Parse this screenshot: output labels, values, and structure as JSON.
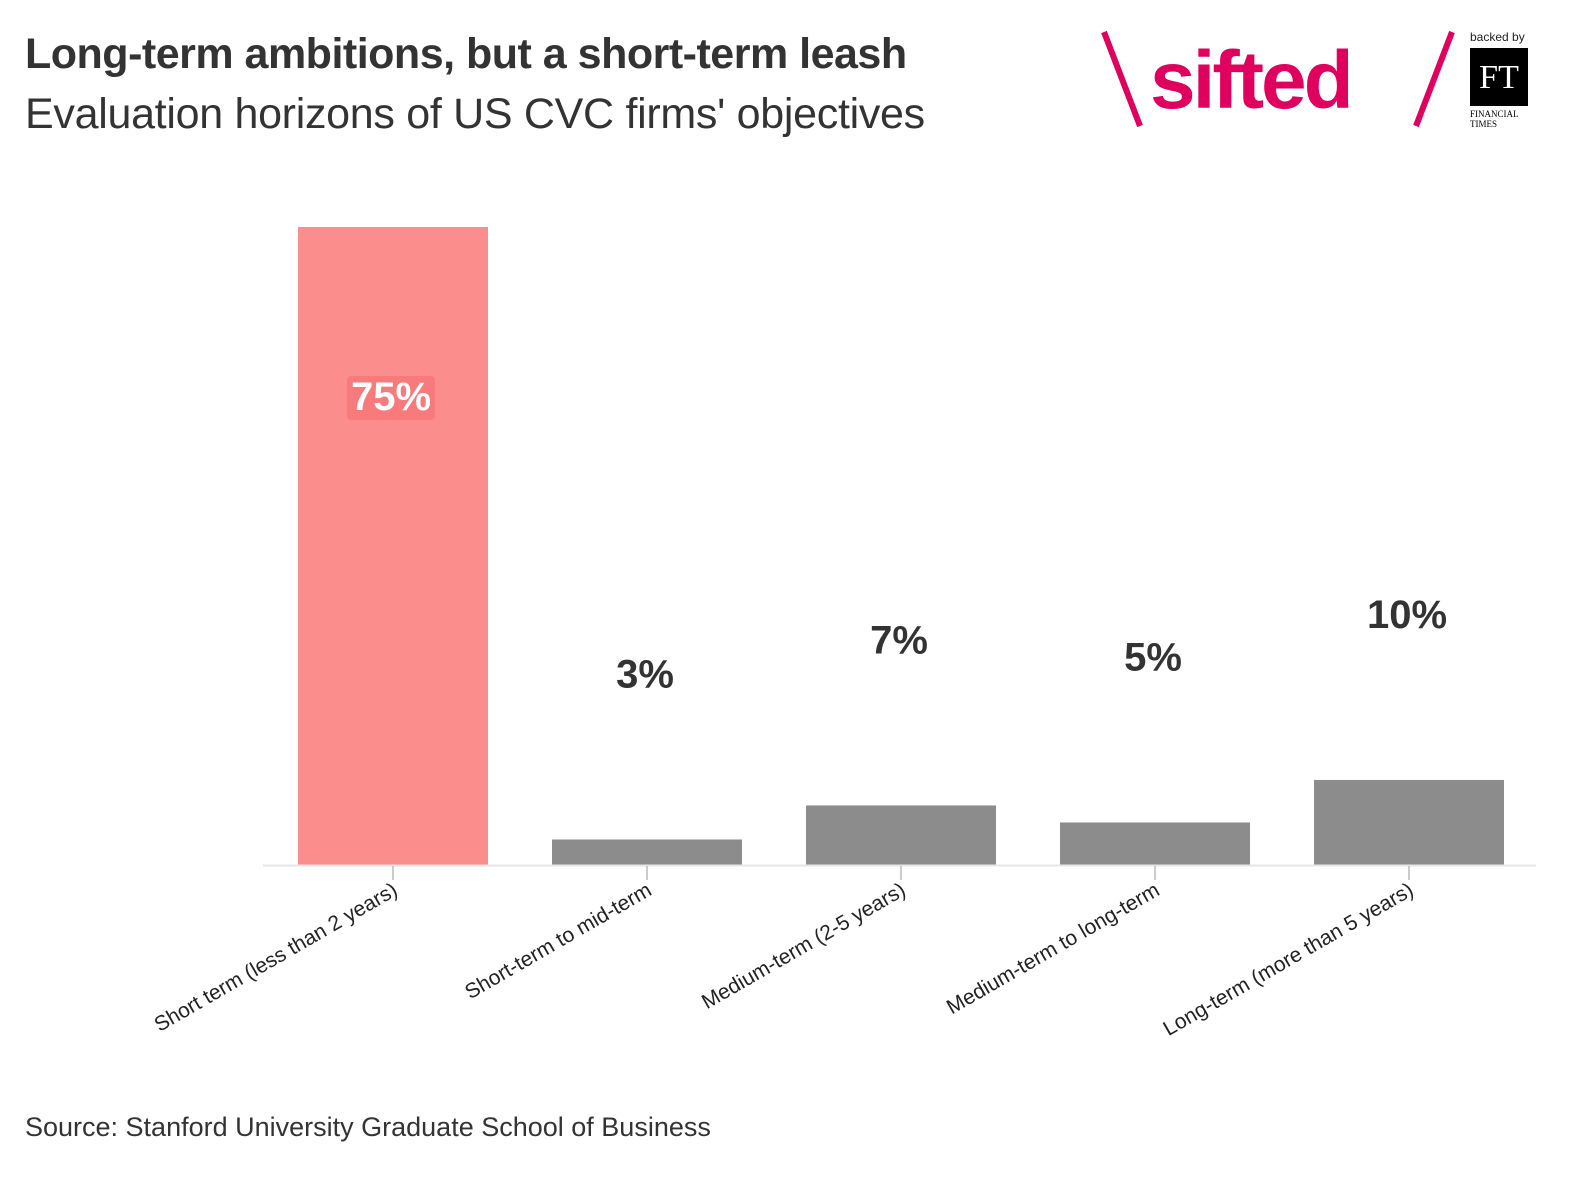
{
  "header": {
    "title": "Long-term ambitions, but a short-term leash",
    "subtitle": "Evaluation horizons of US CVC firms' objectives"
  },
  "logo": {
    "brand": "sifted",
    "backed_by": "backed by",
    "ft_mark": "FT",
    "ft_name_line1": "FINANCIAL",
    "ft_name_line2": "TIMES",
    "brand_color": "#e0005e"
  },
  "source": "Source: Stanford University Graduate School of Business",
  "chart_data": {
    "type": "bar",
    "title": "Long-term ambitions, but a short-term leash",
    "subtitle": "Evaluation horizons of US CVC firms' objectives",
    "categories": [
      "Short term (less than 2 years)",
      "Short-term to mid-term",
      "Medium-term (2-5 years)",
      "Medium-term to long-term",
      "Long-term (more than 5 years)"
    ],
    "values": [
      75,
      3,
      7,
      5,
      10
    ],
    "data_labels": [
      "75%",
      "3%",
      "7%",
      "5%",
      "10%"
    ],
    "unit": "%",
    "ylim": [
      0,
      75
    ],
    "grid": false,
    "colors": [
      "#fc8d8d",
      "#8c8c8c",
      "#8c8c8c",
      "#8c8c8c",
      "#8c8c8c"
    ],
    "highlight_color": "#fc8d8d",
    "default_color": "#8c8c8c"
  }
}
